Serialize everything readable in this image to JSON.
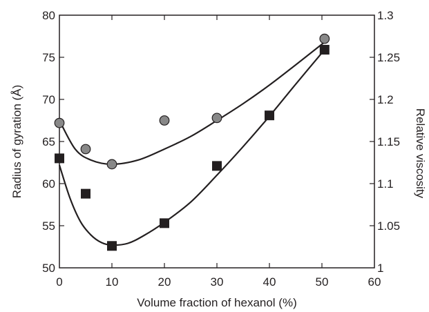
{
  "chart_data": {
    "type": "scatter",
    "title": "",
    "xlabel": "Volume fraction of hexanol (%)",
    "ylabel": "Radius of gyration (Å)",
    "y2label": "Relative viscosity",
    "xlim": [
      0,
      60
    ],
    "ylim": [
      50,
      80
    ],
    "y2lim": [
      1.0,
      1.3
    ],
    "x_ticks": [
      "0",
      "10",
      "20",
      "30",
      "40",
      "50",
      "60"
    ],
    "y_ticks": [
      "50",
      "55",
      "60",
      "65",
      "70",
      "75",
      "80"
    ],
    "y2_ticks": [
      "1",
      "1.05",
      "1.1",
      "1.15",
      "1.2",
      "1.25",
      "1.3"
    ],
    "grid": false,
    "series": [
      {
        "marker": "circle",
        "color": "#888888",
        "axis": "right",
        "x": [
          0,
          5,
          10,
          20,
          30,
          50.5
        ],
        "y": [
          1.172,
          1.141,
          1.123,
          1.175,
          1.178,
          1.272
        ],
        "fit_curve": [
          [
            0,
            1.175
          ],
          [
            3,
            1.141
          ],
          [
            6,
            1.128
          ],
          [
            10,
            1.123
          ],
          [
            15,
            1.128
          ],
          [
            20,
            1.141
          ],
          [
            25,
            1.156
          ],
          [
            30,
            1.175
          ],
          [
            35,
            1.195
          ],
          [
            40,
            1.217
          ],
          [
            45,
            1.241
          ],
          [
            50.5,
            1.268
          ]
        ]
      },
      {
        "marker": "square",
        "color": "#231f20",
        "axis": "left",
        "x": [
          0,
          5,
          10,
          20,
          30,
          40,
          50.5
        ],
        "y": [
          63.0,
          58.8,
          52.6,
          55.3,
          62.1,
          68.1,
          75.9
        ],
        "fit_curve": [
          [
            0,
            62.2
          ],
          [
            2,
            58.3
          ],
          [
            4,
            55.5
          ],
          [
            6,
            53.9
          ],
          [
            8,
            53.0
          ],
          [
            10,
            52.7
          ],
          [
            13,
            52.9
          ],
          [
            16,
            53.8
          ],
          [
            20,
            55.4
          ],
          [
            25,
            57.8
          ],
          [
            30,
            61.0
          ],
          [
            35,
            64.4
          ],
          [
            40,
            68.0
          ],
          [
            45,
            71.8
          ],
          [
            50.5,
            75.9
          ]
        ]
      }
    ]
  }
}
